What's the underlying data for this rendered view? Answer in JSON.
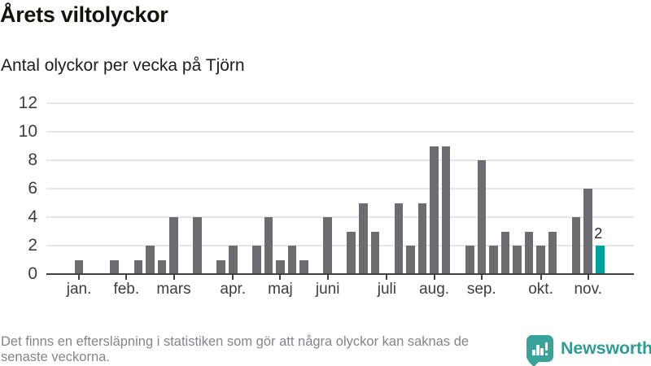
{
  "header": {
    "title": "Årets viltolyckor",
    "subtitle": "Antal olyckor per vecka på Tjörn"
  },
  "chart_data": {
    "type": "bar",
    "title": "Årets viltolyckor",
    "subtitle": "Antal olyckor per vecka på Tjörn",
    "ylim": [
      0,
      12
    ],
    "yticks": [
      0,
      2,
      4,
      6,
      8,
      10,
      12
    ],
    "grid": true,
    "legend": "none",
    "weekly_values": [
      0,
      0,
      1,
      0,
      0,
      1,
      0,
      1,
      2,
      1,
      4,
      0,
      4,
      0,
      1,
      2,
      0,
      2,
      4,
      1,
      2,
      1,
      0,
      4,
      0,
      3,
      5,
      3,
      0,
      5,
      2,
      5,
      9,
      9,
      0,
      2,
      8,
      2,
      3,
      2,
      3,
      2,
      3,
      0,
      4,
      6,
      2,
      0,
      0
    ],
    "months": [
      {
        "label": "jan.",
        "slot": 2
      },
      {
        "label": "feb.",
        "slot": 6
      },
      {
        "label": "mars",
        "slot": 10
      },
      {
        "label": "apr.",
        "slot": 15
      },
      {
        "label": "maj",
        "slot": 19
      },
      {
        "label": "juni",
        "slot": 23
      },
      {
        "label": "juli",
        "slot": 28
      },
      {
        "label": "aug.",
        "slot": 32
      },
      {
        "label": "sep.",
        "slot": 36
      },
      {
        "label": "okt.",
        "slot": 41
      },
      {
        "label": "nov.",
        "slot": 45
      }
    ],
    "highlight": {
      "index": 46,
      "value": 2,
      "label": "2",
      "color": "#00a19a"
    },
    "bar_color": "#6c6c71",
    "gridline_color": "#e6e6e6",
    "axis_color": "#404040"
  },
  "footer": {
    "note_line1": "Det finns en eftersläpning i statistiken som gör att några olyckor kan saknas de",
    "note_line2": "senaste veckorna.",
    "brand": "Newsworthy",
    "brand_color": "#2e9c95"
  }
}
